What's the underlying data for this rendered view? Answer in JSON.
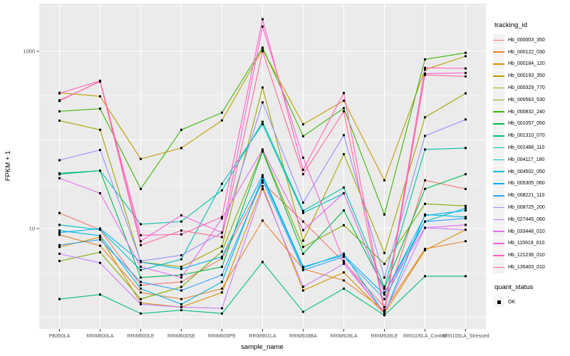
{
  "figure": {
    "legend": {
      "tracking_title": "tracking_id",
      "quant_title": "quant_status",
      "quant_items": [
        {
          "label": "OK"
        }
      ]
    }
  },
  "chart_data": {
    "type": "line",
    "title": "",
    "xlabel": "sample_name",
    "ylabel": "FPKM + 1",
    "y_scale": "log10",
    "ylim": [
      0.74,
      3400
    ],
    "grid": true,
    "legend_position": "right",
    "panel_background": "#EBEBEB",
    "gridline_color": "#FFFFFF",
    "point_shape": "square",
    "point_color": "#000000",
    "quant_status_of_all_points": "OK",
    "y_ticks": [
      {
        "value": 1000,
        "label": "1000"
      },
      {
        "value": 10,
        "label": "10"
      }
    ],
    "y_gridlines_major": [
      1,
      10,
      100,
      1000
    ],
    "y_gridlines_minor": [
      3.162,
      31.62,
      316.2,
      3162
    ],
    "categories": [
      "PB350LA",
      "RRIM600LA",
      "RRIM600LE",
      "RRIM600SE",
      "RRIM600PE",
      "RRIM901LA",
      "RRIM928BA",
      "RRIM928LA",
      "RRIM928LE",
      "RRII105LA_Control",
      "RRII105LA_Stressed"
    ],
    "series": [
      {
        "name": "Hb_000003_350",
        "color": "#F8766D",
        "values": [
          15,
          9.7,
          2.3,
          2.5,
          4.6,
          33,
          12,
          4.2,
          1.3,
          35,
          28
        ]
      },
      {
        "name": "Hb_000122_030",
        "color": "#EA8331",
        "values": [
          8.5,
          6.4,
          1.9,
          1.6,
          2.1,
          12.3,
          3.5,
          2.6,
          1.2,
          5.9,
          7.2
        ]
      },
      {
        "name": "Hb_000184_120",
        "color": "#D89000",
        "values": [
          6.2,
          8.0,
          1.45,
          1.3,
          1.9,
          30,
          2.0,
          3.2,
          1.1,
          5.7,
          9.7
        ]
      },
      {
        "name": "Hb_000193_350",
        "color": "#C09B00",
        "values": [
          340,
          310,
          61,
          81,
          166,
          1050,
          150,
          277,
          35,
          620,
          880
        ]
      },
      {
        "name": "Hb_000329_770",
        "color": "#A3A500",
        "values": [
          165,
          130,
          4.2,
          3.7,
          6.3,
          390,
          7.3,
          69,
          5.3,
          180,
          335
        ]
      },
      {
        "name": "Hb_000563_530",
        "color": "#7CAE00",
        "values": [
          4.3,
          5.4,
          1.6,
          2.2,
          5.5,
          76,
          6.2,
          10.9,
          4.0,
          19,
          18
        ]
      },
      {
        "name": "Hb_000832_240",
        "color": "#39B600",
        "values": [
          210,
          225,
          28,
          130,
          203,
          1100,
          110,
          228,
          14.4,
          810,
          960
        ]
      },
      {
        "name": "Hb_001057_050",
        "color": "#00BB4E",
        "values": [
          42,
          45,
          2.8,
          3.0,
          3.7,
          74,
          5.2,
          16,
          2.1,
          28,
          41
        ]
      },
      {
        "name": "Hb_001310_070",
        "color": "#00BF7D",
        "values": [
          1.6,
          1.8,
          1.1,
          1.2,
          1.1,
          4.2,
          1.15,
          2.1,
          1.05,
          2.9,
          2.9
        ]
      },
      {
        "name": "Hb_001488_110",
        "color": "#00C1A3",
        "values": [
          41,
          45,
          11.2,
          12,
          27,
          160,
          15.8,
          29,
          2.2,
          78,
          81
        ]
      },
      {
        "name": "Hb_004117_180",
        "color": "#00BFC4",
        "values": [
          11,
          9.7,
          3.4,
          4.5,
          32,
          150,
          15,
          25,
          1.9,
          12,
          17
        ]
      },
      {
        "name": "Hb_004502_050",
        "color": "#00BAE0",
        "values": [
          9.5,
          8.3,
          2.1,
          1.4,
          2.5,
          38,
          3.6,
          5.2,
          1.1,
          14.4,
          13.5
        ]
      },
      {
        "name": "Hb_005305_060",
        "color": "#00B0F6",
        "values": [
          9.0,
          10,
          4.2,
          3.5,
          4.8,
          40,
          3.7,
          5.0,
          1.8,
          14,
          16
        ]
      },
      {
        "name": "Hb_008221_110",
        "color": "#35A2FF",
        "values": [
          6.5,
          7.5,
          2.5,
          2.0,
          3.0,
          35,
          3.4,
          4.8,
          1.6,
          12,
          13
        ]
      },
      {
        "name": "Hb_008725_200",
        "color": "#9590FF",
        "values": [
          59,
          77,
          4.3,
          5.0,
          9.0,
          265,
          19.6,
          113,
          2.8,
          111,
          170
        ]
      },
      {
        "name": "Hb_027445_060",
        "color": "#C77CFF",
        "values": [
          5.2,
          4.1,
          1.4,
          1.3,
          1.26,
          28,
          2.2,
          4.0,
          1.12,
          10.2,
          9.7
        ]
      },
      {
        "name": "Hb_033448_010",
        "color": "#E76BF3",
        "values": [
          37,
          25,
          3.7,
          2.8,
          13,
          78,
          9.6,
          25,
          1.9,
          10.2,
          11
        ]
      },
      {
        "name": "Hb_115919_010",
        "color": "#FA62DB",
        "values": [
          280,
          455,
          7.2,
          14.1,
          9.0,
          1900,
          63,
          4.3,
          1.1,
          560,
          570
        ]
      },
      {
        "name": "Hb_121236_010",
        "color": "#FF62BC",
        "values": [
          335,
          465,
          8.4,
          8.6,
          13.5,
          2300,
          46,
          338,
          1.2,
          650,
          640
        ]
      },
      {
        "name": "Hb_135403_010",
        "color": "#FF6A98",
        "values": [
          275,
          460,
          6.5,
          9.5,
          8.0,
          1000,
          41,
          210,
          1.15,
          540,
          520
        ]
      }
    ]
  }
}
